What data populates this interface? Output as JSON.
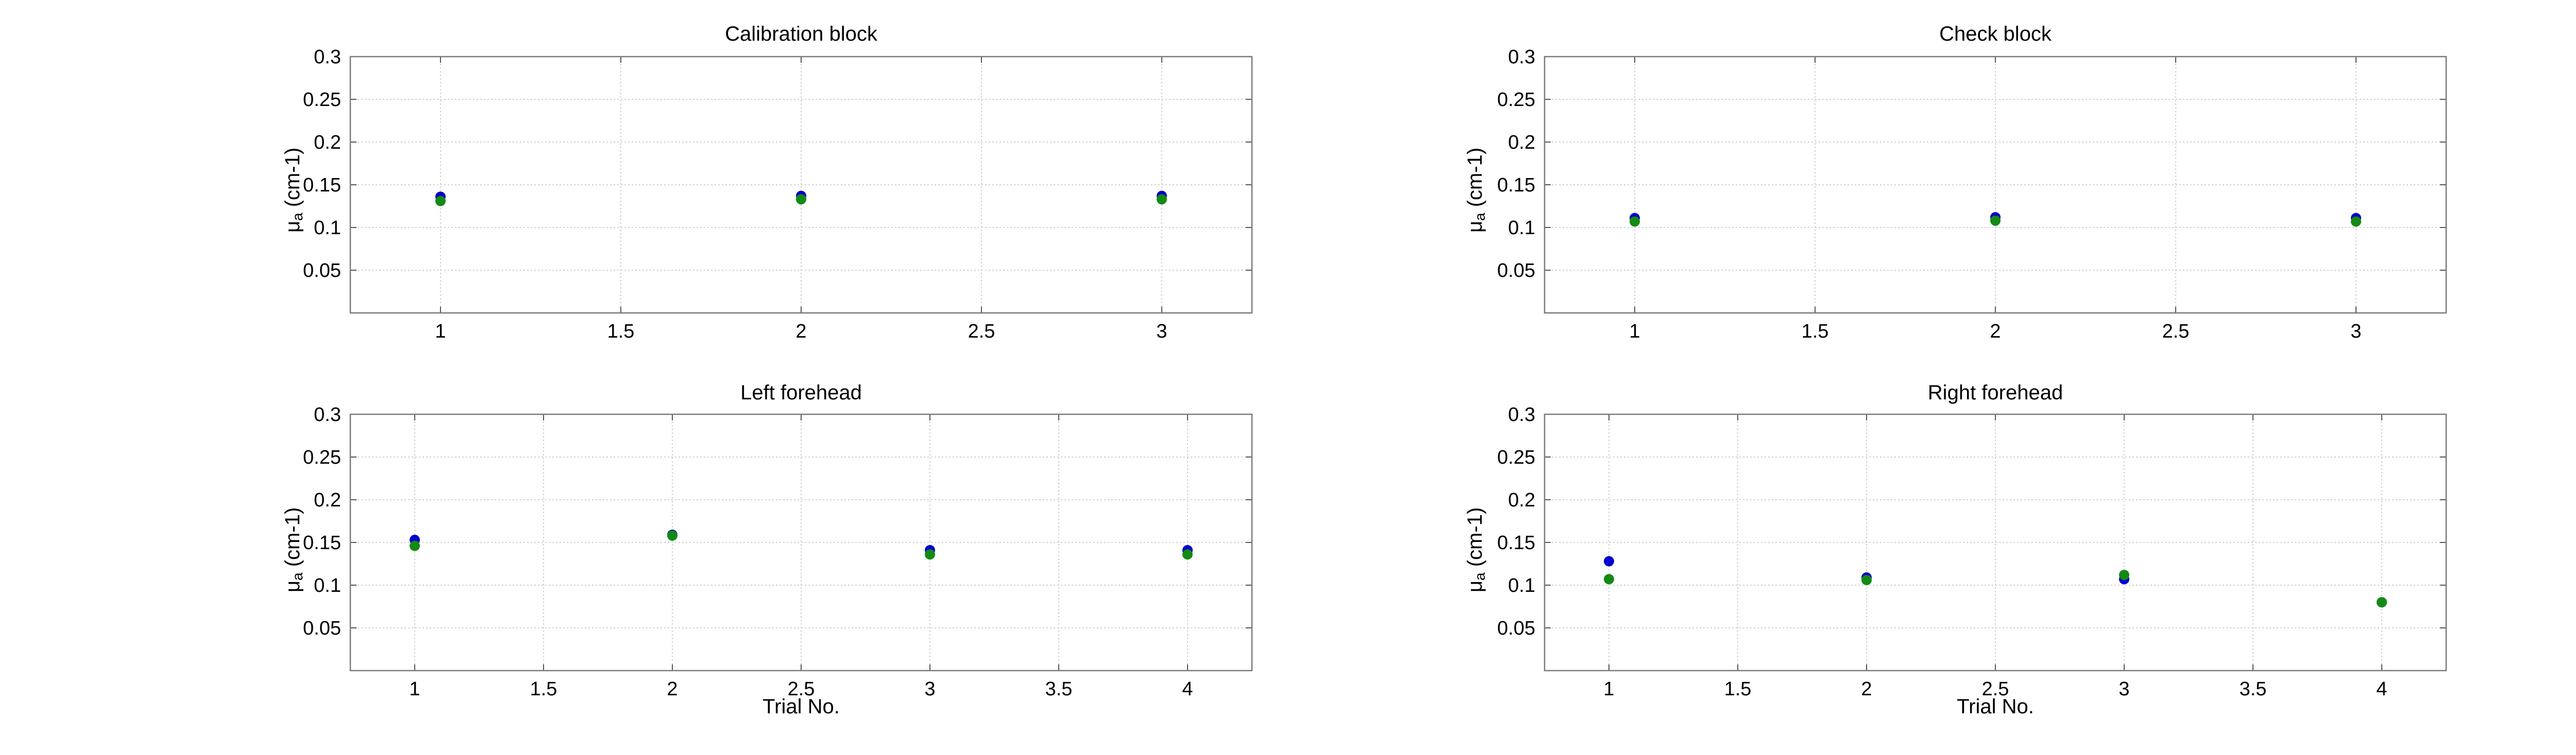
{
  "chart_data": [
    {
      "type": "scatter",
      "title": "Calibration block",
      "xlabel": "",
      "ylabel_main": "μ",
      "ylabel_sub": "a",
      "ylabel_unit": " (cm-1)",
      "xlim": [
        0.75,
        3.25
      ],
      "ylim": [
        0,
        0.3
      ],
      "xticks": [
        1,
        1.5,
        2,
        2.5,
        3
      ],
      "xtick_labels": [
        "1",
        "1.5",
        "2",
        "2.5",
        "3"
      ],
      "yticks": [
        0.05,
        0.1,
        0.15,
        0.2,
        0.25,
        0.3
      ],
      "ytick_labels": [
        "0.05",
        "0.1",
        "0.15",
        "0.2",
        "0.25",
        "0.3"
      ],
      "grid": true,
      "series": [
        {
          "name": "blue",
          "color": "#0000cc",
          "x": [
            1,
            2,
            3
          ],
          "y": [
            0.136,
            0.137,
            0.137
          ]
        },
        {
          "name": "green",
          "color": "#138a13",
          "x": [
            1,
            2,
            3
          ],
          "y": [
            0.131,
            0.133,
            0.133
          ]
        }
      ]
    },
    {
      "type": "scatter",
      "title": "Check block",
      "xlabel": "",
      "ylabel_main": "μ",
      "ylabel_sub": "a",
      "ylabel_unit": " (cm-1)",
      "xlim": [
        0.75,
        3.25
      ],
      "ylim": [
        0,
        0.3
      ],
      "xticks": [
        1,
        1.5,
        2,
        2.5,
        3
      ],
      "xtick_labels": [
        "1",
        "1.5",
        "2",
        "2.5",
        "3"
      ],
      "yticks": [
        0.05,
        0.1,
        0.15,
        0.2,
        0.25,
        0.3
      ],
      "ytick_labels": [
        "0.05",
        "0.1",
        "0.15",
        "0.2",
        "0.25",
        "0.3"
      ],
      "grid": true,
      "series": [
        {
          "name": "blue",
          "color": "#0000cc",
          "x": [
            1,
            2,
            3
          ],
          "y": [
            0.111,
            0.112,
            0.111
          ]
        },
        {
          "name": "green",
          "color": "#138a13",
          "x": [
            1,
            2,
            3
          ],
          "y": [
            0.107,
            0.108,
            0.107
          ]
        }
      ]
    },
    {
      "type": "scatter",
      "title": "Left forehead",
      "xlabel": "Trial No.",
      "ylabel_main": "μ",
      "ylabel_sub": "a",
      "ylabel_unit": " (cm-1)",
      "xlim": [
        0.75,
        4.25
      ],
      "ylim": [
        0,
        0.3
      ],
      "xticks": [
        1,
        1.5,
        2,
        2.5,
        3,
        3.5,
        4
      ],
      "xtick_labels": [
        "1",
        "1.5",
        "2",
        "2.5",
        "3",
        "3.5",
        "4"
      ],
      "yticks": [
        0.05,
        0.1,
        0.15,
        0.2,
        0.25,
        0.3
      ],
      "ytick_labels": [
        "0.05",
        "0.1",
        "0.15",
        "0.2",
        "0.25",
        "0.3"
      ],
      "grid": true,
      "series": [
        {
          "name": "blue",
          "color": "#0000cc",
          "x": [
            1,
            2,
            3,
            4
          ],
          "y": [
            0.153,
            0.159,
            0.141,
            0.141
          ]
        },
        {
          "name": "green",
          "color": "#138a13",
          "x": [
            1,
            2,
            3,
            4
          ],
          "y": [
            0.146,
            0.158,
            0.136,
            0.136
          ]
        }
      ]
    },
    {
      "type": "scatter",
      "title": "Right forehead",
      "xlabel": "Trial No.",
      "ylabel_main": "μ",
      "ylabel_sub": "a",
      "ylabel_unit": " (cm-1)",
      "xlim": [
        0.75,
        4.25
      ],
      "ylim": [
        0,
        0.3
      ],
      "xticks": [
        1,
        1.5,
        2,
        2.5,
        3,
        3.5,
        4
      ],
      "xtick_labels": [
        "1",
        "1.5",
        "2",
        "2.5",
        "3",
        "3.5",
        "4"
      ],
      "yticks": [
        0.05,
        0.1,
        0.15,
        0.2,
        0.25,
        0.3
      ],
      "ytick_labels": [
        "0.05",
        "0.1",
        "0.15",
        "0.2",
        "0.25",
        "0.3"
      ],
      "grid": true,
      "series": [
        {
          "name": "blue",
          "color": "#0000cc",
          "x": [
            1,
            2,
            3,
            4
          ],
          "y": [
            0.128,
            0.109,
            0.107,
            0.08
          ]
        },
        {
          "name": "green",
          "color": "#138a13",
          "x": [
            1,
            2,
            3,
            4
          ],
          "y": [
            0.107,
            0.106,
            0.112,
            0.08
          ]
        }
      ]
    }
  ]
}
